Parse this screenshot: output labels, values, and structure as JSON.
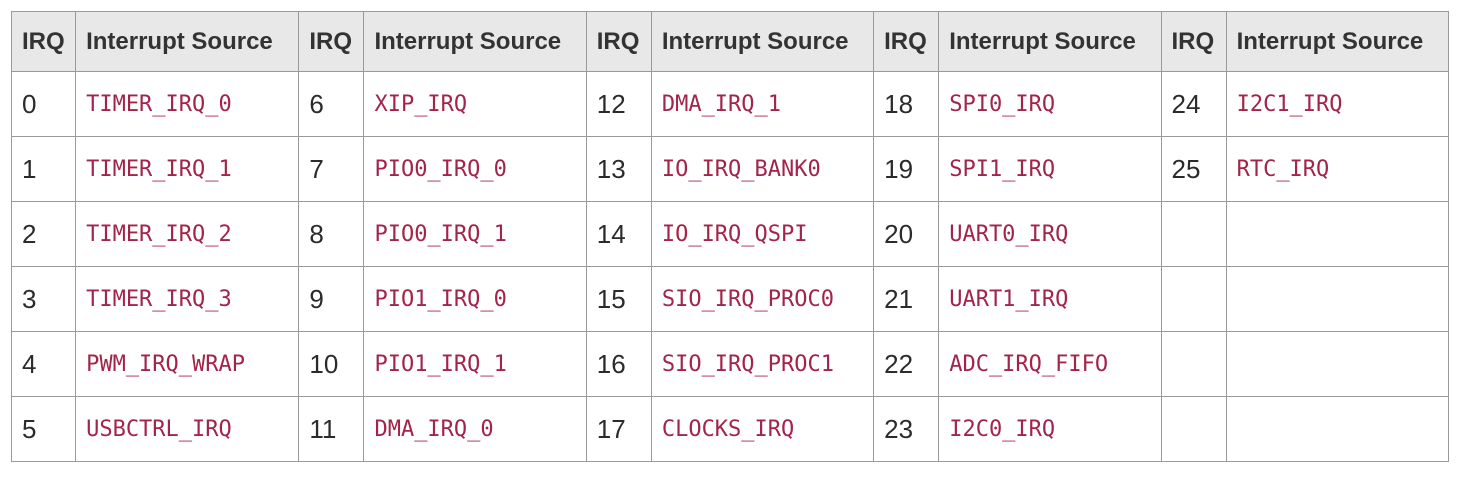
{
  "table": {
    "header": {
      "irq_label": "IRQ",
      "source_label": "Interrupt Source"
    },
    "rows": [
      [
        [
          "0",
          "TIMER_IRQ_0"
        ],
        [
          "6",
          "XIP_IRQ"
        ],
        [
          "12",
          "DMA_IRQ_1"
        ],
        [
          "18",
          "SPI0_IRQ"
        ],
        [
          "24",
          "I2C1_IRQ"
        ]
      ],
      [
        [
          "1",
          "TIMER_IRQ_1"
        ],
        [
          "7",
          "PIO0_IRQ_0"
        ],
        [
          "13",
          "IO_IRQ_BANK0"
        ],
        [
          "19",
          "SPI1_IRQ"
        ],
        [
          "25",
          "RTC_IRQ"
        ]
      ],
      [
        [
          "2",
          "TIMER_IRQ_2"
        ],
        [
          "8",
          "PIO0_IRQ_1"
        ],
        [
          "14",
          "IO_IRQ_QSPI"
        ],
        [
          "20",
          "UART0_IRQ"
        ],
        [
          "",
          ""
        ]
      ],
      [
        [
          "3",
          "TIMER_IRQ_3"
        ],
        [
          "9",
          "PIO1_IRQ_0"
        ],
        [
          "15",
          "SIO_IRQ_PROC0"
        ],
        [
          "21",
          "UART1_IRQ"
        ],
        [
          "",
          ""
        ]
      ],
      [
        [
          "4",
          "PWM_IRQ_WRAP"
        ],
        [
          "10",
          "PIO1_IRQ_1"
        ],
        [
          "16",
          "SIO_IRQ_PROC1"
        ],
        [
          "22",
          "ADC_IRQ_FIFO"
        ],
        [
          "",
          ""
        ]
      ],
      [
        [
          "5",
          "USBCTRL_IRQ"
        ],
        [
          "11",
          "DMA_IRQ_0"
        ],
        [
          "17",
          "CLOCKS_IRQ"
        ],
        [
          "23",
          "I2C0_IRQ"
        ],
        [
          "",
          ""
        ]
      ]
    ]
  },
  "colors": {
    "source_text": "#a3244b",
    "header_bg": "#e8e8e8",
    "border": "#9a9a9a"
  }
}
